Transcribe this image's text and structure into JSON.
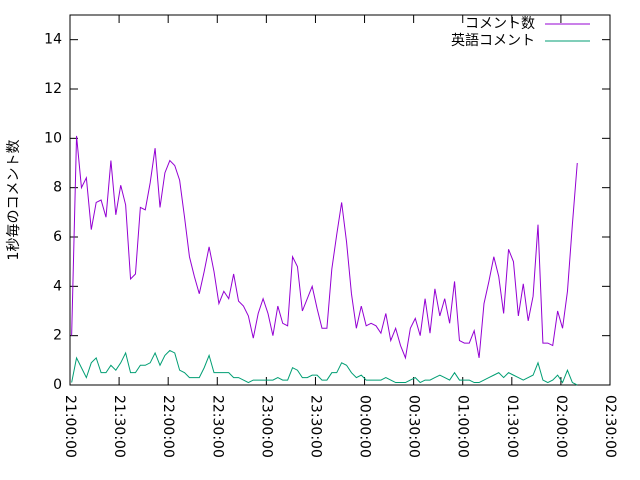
{
  "chart_data": {
    "type": "line",
    "y_label": "1秒毎のコメント数",
    "x": [
      1,
      4,
      7,
      10,
      13,
      16,
      19,
      22,
      25,
      28,
      31,
      34,
      37,
      40,
      43,
      46,
      49,
      52,
      55,
      58,
      61,
      64,
      67,
      70,
      73,
      76,
      79,
      82,
      85,
      88,
      91,
      94,
      97,
      100,
      103,
      106,
      109,
      112,
      115,
      118,
      121,
      124,
      127,
      130,
      133,
      136,
      139,
      142,
      145,
      148,
      151,
      154,
      157,
      160,
      163,
      166,
      169,
      172,
      175,
      178,
      181,
      184,
      187,
      190,
      193,
      196,
      199,
      202,
      205,
      208,
      211,
      214,
      217,
      220,
      223,
      226,
      229,
      232,
      235,
      238,
      241,
      244,
      247,
      250,
      253,
      256,
      259,
      262,
      265,
      268,
      271,
      274,
      277,
      280,
      283,
      286,
      289,
      292,
      295,
      298,
      301,
      304,
      307,
      310
    ],
    "series": [
      {
        "name": "コメント数",
        "color": "#9400d3",
        "values": [
          2,
          10.1,
          8,
          8.4,
          6.3,
          7.4,
          7.5,
          6.8,
          9.1,
          6.9,
          8.1,
          7.3,
          4.3,
          4.5,
          7.2,
          7.1,
          8.2,
          9.6,
          7.2,
          8.6,
          9.1,
          8.9,
          8.3,
          6.8,
          5.2,
          4.4,
          3.7,
          4.6,
          5.6,
          4.6,
          3.3,
          3.8,
          3.5,
          4.5,
          3.4,
          3.2,
          2.8,
          1.9,
          2.9,
          3.5,
          2.9,
          2.0,
          3.2,
          2.5,
          2.4,
          5.2,
          4.8,
          3.0,
          3.5,
          4.0,
          3.1,
          2.3,
          2.3,
          4.7,
          6.1,
          7.4,
          5.8,
          3.7,
          2.3,
          3.2,
          2.4,
          2.5,
          2.4,
          2.1,
          2.9,
          1.8,
          2.3,
          1.6,
          1.1,
          2.3,
          2.7,
          2.0,
          3.5,
          2.1,
          3.9,
          2.8,
          3.5,
          2.5,
          4.2,
          1.8,
          1.7,
          1.7,
          2.2,
          1.1,
          3.3,
          4.2,
          5.2,
          4.4,
          2.9,
          5.5,
          5.0,
          2.8,
          4.1,
          2.6,
          3.6,
          6.5,
          1.7,
          1.7,
          1.6,
          3.0,
          2.3,
          3.8,
          6.5,
          9.0
        ]
      },
      {
        "name": "英語コメント",
        "color": "#009e73",
        "values": [
          0.1,
          1.1,
          0.7,
          0.3,
          0.9,
          1.1,
          0.5,
          0.5,
          0.8,
          0.6,
          0.9,
          1.3,
          0.5,
          0.5,
          0.8,
          0.8,
          0.9,
          1.3,
          0.8,
          1.2,
          1.4,
          1.3,
          0.6,
          0.5,
          0.3,
          0.3,
          0.3,
          0.7,
          1.2,
          0.5,
          0.5,
          0.5,
          0.5,
          0.3,
          0.3,
          0.2,
          0.1,
          0.2,
          0.2,
          0.2,
          0.2,
          0.2,
          0.3,
          0.2,
          0.2,
          0.7,
          0.6,
          0.3,
          0.3,
          0.4,
          0.4,
          0.2,
          0.2,
          0.5,
          0.5,
          0.9,
          0.8,
          0.5,
          0.3,
          0.4,
          0.2,
          0.2,
          0.2,
          0.2,
          0.3,
          0.2,
          0.1,
          0.1,
          0.1,
          0.2,
          0.3,
          0.1,
          0.2,
          0.2,
          0.3,
          0.4,
          0.3,
          0.2,
          0.5,
          0.2,
          0.2,
          0.2,
          0.1,
          0.1,
          0.2,
          0.3,
          0.4,
          0.5,
          0.3,
          0.5,
          0.4,
          0.3,
          0.2,
          0.3,
          0.4,
          0.9,
          0.2,
          0.1,
          0.2,
          0.4,
          0.1,
          0.6,
          0.1,
          0.0
        ]
      }
    ],
    "xlim": [
      0,
      330
    ],
    "xticks": [
      {
        "value": 0,
        "label": "21:00:00"
      },
      {
        "value": 30,
        "label": "21:30:00"
      },
      {
        "value": 60,
        "label": "22:00:00"
      },
      {
        "value": 90,
        "label": "22:30:00"
      },
      {
        "value": 120,
        "label": "23:00:00"
      },
      {
        "value": 150,
        "label": "23:30:00"
      },
      {
        "value": 180,
        "label": "00:00:00"
      },
      {
        "value": 210,
        "label": "00:30:00"
      },
      {
        "value": 240,
        "label": "01:00:00"
      },
      {
        "value": 270,
        "label": "01:30:00"
      },
      {
        "value": 300,
        "label": "02:00:00"
      },
      {
        "value": 330,
        "label": "02:30:00"
      }
    ],
    "ylim": [
      0,
      15
    ],
    "yticks": [
      0,
      2,
      4,
      6,
      8,
      10,
      12,
      14
    ],
    "legend": "top-right"
  }
}
